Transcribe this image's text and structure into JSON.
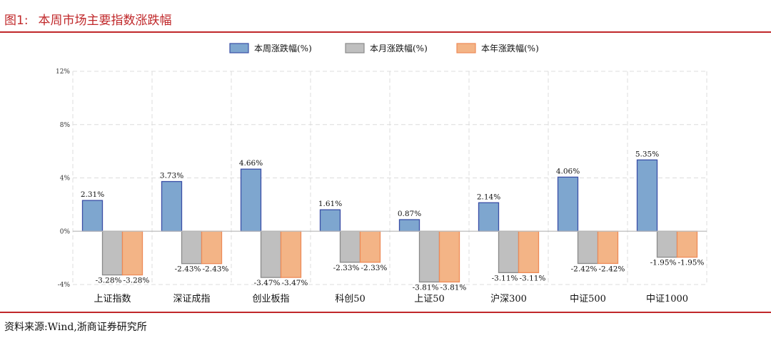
{
  "figure": {
    "title_prefix": "图1:",
    "title": "本周市场主要指数涨跌幅",
    "source": "资料来源:Wind,浙商证券研究所"
  },
  "colors": {
    "accent_red": "#c0282a",
    "series_week_fill": "#7ea6cf",
    "series_week_edge": "#3a4fa6",
    "series_month_fill": "#bfbfbf",
    "series_month_edge": "#8a8a8a",
    "series_year_fill": "#f3b486",
    "series_year_edge": "#ee8a57"
  },
  "chart_data": {
    "type": "bar",
    "categories": [
      "上证指数",
      "深证成指",
      "创业板指",
      "科创50",
      "上证50",
      "沪深300",
      "中证500",
      "中证1000"
    ],
    "series": [
      {
        "name": "本周涨跌幅(%)",
        "values": [
          2.31,
          3.73,
          4.66,
          1.61,
          0.87,
          2.14,
          4.06,
          5.35
        ],
        "labels": [
          "2.31%",
          "3.73%",
          "4.66%",
          "1.61%",
          "0.87%",
          "2.14%",
          "4.06%",
          "5.35%"
        ]
      },
      {
        "name": "本月涨跌幅(%)",
        "values": [
          -3.28,
          -2.43,
          -3.47,
          -2.33,
          -3.81,
          -3.11,
          -2.42,
          -1.95
        ],
        "labels": [
          "-3.28%",
          "-2.43%",
          "-3.47%",
          "-2.33%",
          "-3.81%",
          "-3.11%",
          "-2.42%",
          "-1.95%"
        ]
      },
      {
        "name": "本年涨跌幅(%)",
        "values": [
          -3.28,
          -2.43,
          -3.47,
          -2.33,
          -3.81,
          -3.11,
          -2.42,
          -1.95
        ],
        "labels": [
          "-3.28%",
          "-2.43%",
          "-3.47%",
          "-2.33%",
          "-3.81%",
          "-3.11%",
          "-2.42%",
          "-1.95%"
        ]
      }
    ],
    "yticks": [
      -4,
      0,
      4,
      8,
      12
    ],
    "ytick_labels": [
      "-4%",
      "0%",
      "4%",
      "8%",
      "12%"
    ],
    "ylim": [
      -4,
      12
    ],
    "grid": true,
    "legend_position": "top-center"
  }
}
